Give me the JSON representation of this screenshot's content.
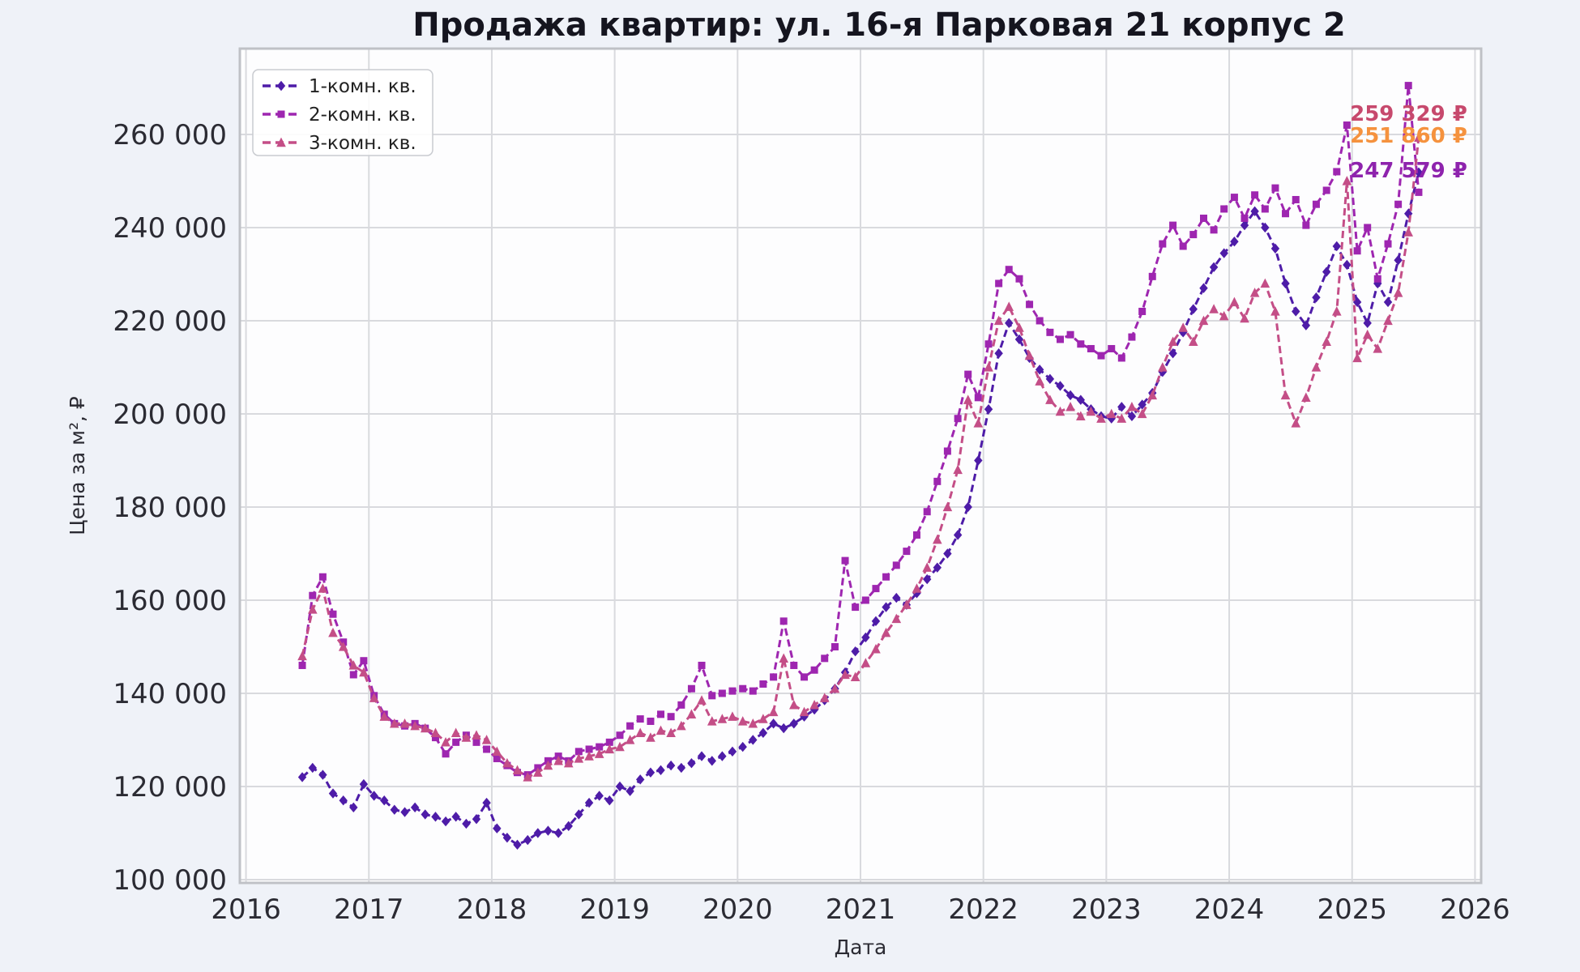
{
  "title": "Продажа квартир: ул. 16-я Парковая 21 корпус 2",
  "colors": {
    "figure_bg": "#eff2f8",
    "axes_bg": "#fdfdfe",
    "grid": "#d9dade",
    "spine": "#bfc1c6",
    "title_color": "#15151f",
    "tick_color": "#2b2b33",
    "axis_label_color": "#2b2b33",
    "legend_text": "#222222",
    "legend_border": "#c9cbd0",
    "legend_bg": "#ffffff"
  },
  "legend": {
    "items": [
      {
        "label": "1-комн. кв.",
        "color": "#4e1ca8",
        "marker": "diamond"
      },
      {
        "label": "2-комн. кв.",
        "color": "#9e26b0",
        "marker": "square"
      },
      {
        "label": "3-комн. кв.",
        "color": "#c44e87",
        "marker": "triangle"
      }
    ]
  },
  "chart_data": {
    "type": "line",
    "title": "Продажа квартир: ул. 16-я Парковая 21 корпус 2",
    "xlabel": "Дата",
    "ylabel": "Цена за м², ₽",
    "grid": true,
    "legend_position": "upper-left",
    "xlim": [
      2015.95,
      2026.05
    ],
    "ylim": [
      99300,
      278430
    ],
    "x_ticks": [
      2016,
      2017,
      2018,
      2019,
      2020,
      2021,
      2022,
      2023,
      2024,
      2025,
      2026
    ],
    "x_tick_labels": [
      "2016",
      "2017",
      "2018",
      "2019",
      "2020",
      "2021",
      "2022",
      "2023",
      "2024",
      "2025",
      "2026"
    ],
    "y_ticks": [
      100000,
      120000,
      140000,
      160000,
      180000,
      200000,
      220000,
      240000,
      260000
    ],
    "y_tick_labels": [
      "100 000",
      "120 000",
      "140 000",
      "160 000",
      "180 000",
      "200 000",
      "220 000",
      "240 000",
      "260 000"
    ],
    "x": [
      2016.458,
      2016.542,
      2016.625,
      2016.708,
      2016.792,
      2016.875,
      2016.958,
      2017.042,
      2017.125,
      2017.208,
      2017.292,
      2017.375,
      2017.458,
      2017.542,
      2017.625,
      2017.708,
      2017.792,
      2017.875,
      2017.958,
      2018.042,
      2018.125,
      2018.208,
      2018.292,
      2018.375,
      2018.458,
      2018.542,
      2018.625,
      2018.708,
      2018.792,
      2018.875,
      2018.958,
      2019.042,
      2019.125,
      2019.208,
      2019.292,
      2019.375,
      2019.458,
      2019.542,
      2019.625,
      2019.708,
      2019.792,
      2019.875,
      2019.958,
      2020.042,
      2020.125,
      2020.208,
      2020.292,
      2020.375,
      2020.458,
      2020.542,
      2020.625,
      2020.708,
      2020.792,
      2020.875,
      2020.958,
      2021.042,
      2021.125,
      2021.208,
      2021.292,
      2021.375,
      2021.458,
      2021.542,
      2021.625,
      2021.708,
      2021.792,
      2021.875,
      2021.958,
      2022.042,
      2022.125,
      2022.208,
      2022.292,
      2022.375,
      2022.458,
      2022.542,
      2022.625,
      2022.708,
      2022.792,
      2022.875,
      2022.958,
      2023.042,
      2023.125,
      2023.208,
      2023.292,
      2023.375,
      2023.458,
      2023.542,
      2023.625,
      2023.708,
      2023.792,
      2023.875,
      2023.958,
      2024.042,
      2024.125,
      2024.208,
      2024.292,
      2024.375,
      2024.458,
      2024.542,
      2024.625,
      2024.708,
      2024.792,
      2024.875,
      2024.958,
      2025.042,
      2025.125,
      2025.208,
      2025.292,
      2025.375,
      2025.458,
      2025.542
    ],
    "series": [
      {
        "name": "1-комн. кв.",
        "color": "#4e1ca8",
        "marker": "diamond",
        "linestyle": "dashed",
        "values": [
          122000,
          124000,
          122500,
          118500,
          117000,
          115500,
          120500,
          118000,
          117000,
          115000,
          114500,
          115500,
          114000,
          113500,
          112500,
          113500,
          112000,
          113000,
          116500,
          111000,
          109000,
          107500,
          108500,
          110000,
          110500,
          110000,
          111500,
          114000,
          116500,
          118000,
          117000,
          120000,
          119000,
          121500,
          123000,
          123500,
          124500,
          124000,
          125000,
          126500,
          125500,
          126500,
          127500,
          128500,
          130000,
          131500,
          133500,
          132500,
          133500,
          135000,
          136500,
          138500,
          141000,
          144500,
          149000,
          152000,
          155500,
          158500,
          160500,
          159000,
          161500,
          164500,
          167000,
          170000,
          174000,
          180000,
          190000,
          201000,
          213000,
          219500,
          216000,
          212000,
          209500,
          207500,
          206000,
          204000,
          203000,
          201000,
          199500,
          199000,
          201500,
          199500,
          202000,
          204500,
          209000,
          213000,
          217500,
          222500,
          227000,
          231500,
          234500,
          237000,
          240500,
          243500,
          240000,
          235500,
          228000,
          222000,
          219000,
          225000,
          230500,
          236000,
          232000,
          224000,
          219500,
          228000,
          224000,
          233000,
          243000,
          251860
        ]
      },
      {
        "name": "2-комн. кв.",
        "color": "#9e26b0",
        "marker": "square",
        "linestyle": "dashed",
        "values": [
          146000,
          161000,
          165000,
          157000,
          151000,
          144000,
          147000,
          139500,
          135500,
          133500,
          133000,
          133500,
          132500,
          130500,
          127000,
          129500,
          131000,
          129500,
          128000,
          126000,
          124500,
          123000,
          122500,
          124000,
          125500,
          126500,
          125500,
          127500,
          128000,
          128500,
          129500,
          131000,
          133000,
          134500,
          134000,
          135500,
          135000,
          137500,
          141000,
          146000,
          139500,
          140000,
          140500,
          141000,
          140500,
          142000,
          143500,
          155500,
          146000,
          143500,
          145000,
          147500,
          150000,
          168500,
          158500,
          160000,
          162500,
          165000,
          167500,
          170500,
          174000,
          179000,
          185500,
          192000,
          199000,
          208500,
          203500,
          215000,
          228000,
          231000,
          229000,
          223500,
          220000,
          217500,
          216000,
          217000,
          215000,
          214000,
          212500,
          214000,
          212000,
          216500,
          222000,
          229500,
          236500,
          240500,
          236000,
          238500,
          242000,
          239500,
          244000,
          246500,
          242000,
          247000,
          244000,
          248500,
          243000,
          246000,
          240500,
          245000,
          248000,
          252000,
          262000,
          235000,
          240000,
          229000,
          236500,
          245000,
          270500,
          247579
        ]
      },
      {
        "name": "3-комн. кв.",
        "color": "#c44e87",
        "marker": "triangle",
        "linestyle": "dashed",
        "values": [
          148000,
          158000,
          162500,
          153000,
          150000,
          146000,
          144500,
          139000,
          135000,
          133500,
          133500,
          133000,
          132500,
          131500,
          129500,
          131500,
          130500,
          131000,
          130000,
          127500,
          125000,
          123500,
          122000,
          123000,
          124500,
          125500,
          125000,
          126000,
          126500,
          127000,
          128000,
          128500,
          130000,
          131500,
          130500,
          132000,
          131500,
          133000,
          135500,
          138500,
          134000,
          134500,
          135000,
          134000,
          133500,
          134500,
          136000,
          147500,
          137500,
          136000,
          137500,
          139000,
          141000,
          144000,
          143500,
          146500,
          149500,
          153000,
          156000,
          159000,
          162500,
          167000,
          173000,
          180000,
          188000,
          203000,
          198000,
          210000,
          220000,
          223000,
          218500,
          212500,
          207000,
          203000,
          200500,
          201500,
          199500,
          200500,
          199000,
          200000,
          199000,
          201500,
          200000,
          204000,
          210000,
          215500,
          218500,
          215500,
          220000,
          222500,
          221000,
          224000,
          220500,
          226000,
          228000,
          222000,
          204000,
          198000,
          203500,
          210000,
          215500,
          222000,
          250000,
          212000,
          217000,
          214000,
          220000,
          226000,
          239000,
          259329
        ]
      }
    ],
    "annotations": [
      {
        "text": "259 329 ₽",
        "color": "#c7496d",
        "x": 2025.46,
        "y": 264500
      },
      {
        "text": "251 860 ₽",
        "color": "#f5923e",
        "x": 2025.46,
        "y": 259800
      },
      {
        "text": "247 579 ₽",
        "color": "#8e23ad",
        "x": 2025.46,
        "y": 252300
      }
    ]
  }
}
